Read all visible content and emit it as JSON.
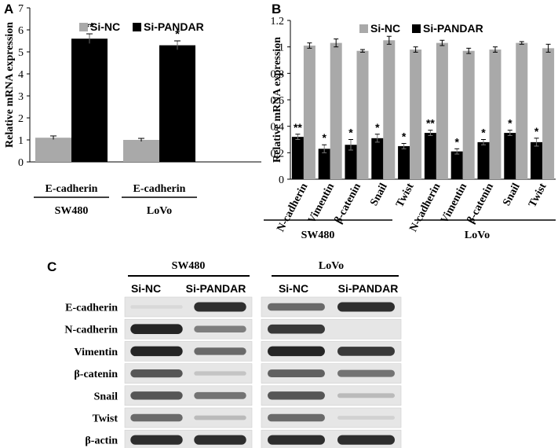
{
  "panel_labels": {
    "a": "A",
    "b": "B",
    "c": "C"
  },
  "colors": {
    "si_nc": "#a9a9a9",
    "si_pandar": "#000000"
  },
  "chart_data": [
    {
      "type": "bar",
      "panel": "A",
      "ylabel": "Relative mRNA expression",
      "ylim": [
        0,
        7
      ],
      "yticks": [
        "0",
        "1",
        "2",
        "3",
        "4",
        "5",
        "6",
        "7"
      ],
      "categories": [
        "E-cadherin",
        "E-cadherin"
      ],
      "groups": [
        "SW480",
        "LoVo"
      ],
      "legend": {
        "placement": "top-left"
      },
      "series": [
        {
          "name": "Si-NC",
          "values": [
            1.1,
            1.0
          ],
          "errors": [
            0.08,
            0.07
          ],
          "sig": [
            "",
            ""
          ]
        },
        {
          "name": "Si-PANDAR",
          "values": [
            5.6,
            5.3
          ],
          "errors": [
            0.22,
            0.2
          ],
          "sig": [
            "**",
            "*"
          ]
        }
      ]
    },
    {
      "type": "bar",
      "panel": "B",
      "ylabel": "Relative mRNA expression",
      "ylim": [
        0,
        1.2
      ],
      "yticks": [
        "0",
        "0.2",
        "0.4",
        "0.6",
        "0.8",
        "1",
        "1.2"
      ],
      "categories": [
        "N-cadherin",
        "Vimentin",
        "β-catenin",
        "Snail",
        "Twist",
        "N-cadherin",
        "Vimentin",
        "β-catenin",
        "Snail",
        "Twist"
      ],
      "groups": [
        "SW480",
        "LoVo"
      ],
      "legend": {
        "placement": "top-center"
      },
      "series": [
        {
          "name": "Si-NC",
          "values": [
            1.01,
            1.03,
            0.97,
            1.05,
            0.98,
            1.03,
            0.97,
            0.98,
            1.03,
            0.99
          ],
          "errors": [
            0.02,
            0.03,
            0.01,
            0.03,
            0.02,
            0.02,
            0.02,
            0.02,
            0.01,
            0.03
          ],
          "sig": [
            "",
            "",
            "",
            "",
            "",
            "",
            "",
            "",
            "",
            ""
          ]
        },
        {
          "name": "Si-PANDAR",
          "values": [
            0.32,
            0.23,
            0.26,
            0.31,
            0.25,
            0.35,
            0.21,
            0.28,
            0.35,
            0.28
          ],
          "errors": [
            0.02,
            0.03,
            0.04,
            0.03,
            0.02,
            0.02,
            0.02,
            0.02,
            0.02,
            0.03
          ],
          "sig": [
            "**",
            "*",
            "*",
            "*",
            "*",
            "**",
            "*",
            "*",
            "*",
            "*"
          ]
        }
      ]
    }
  ],
  "blot": {
    "cell_lines": [
      "SW480",
      "LoVo"
    ],
    "conditions": [
      "Si-NC",
      "Si-PANDAR"
    ],
    "rows": [
      {
        "label": "E-cadherin",
        "bands": [
          0.05,
          0.9,
          0.6,
          0.9
        ]
      },
      {
        "label": "N-cadherin",
        "bands": [
          0.95,
          0.5,
          0.85,
          0.0
        ]
      },
      {
        "label": "Vimentin",
        "bands": [
          0.95,
          0.6,
          0.95,
          0.85
        ]
      },
      {
        "label": "β-catenin",
        "bands": [
          0.7,
          0.15,
          0.65,
          0.55
        ]
      },
      {
        "label": "Snail",
        "bands": [
          0.7,
          0.55,
          0.7,
          0.2
        ]
      },
      {
        "label": "Twist",
        "bands": [
          0.6,
          0.2,
          0.6,
          0.08
        ]
      },
      {
        "label": "β-actin",
        "bands": [
          0.9,
          0.9,
          0.9,
          0.9
        ]
      }
    ]
  }
}
